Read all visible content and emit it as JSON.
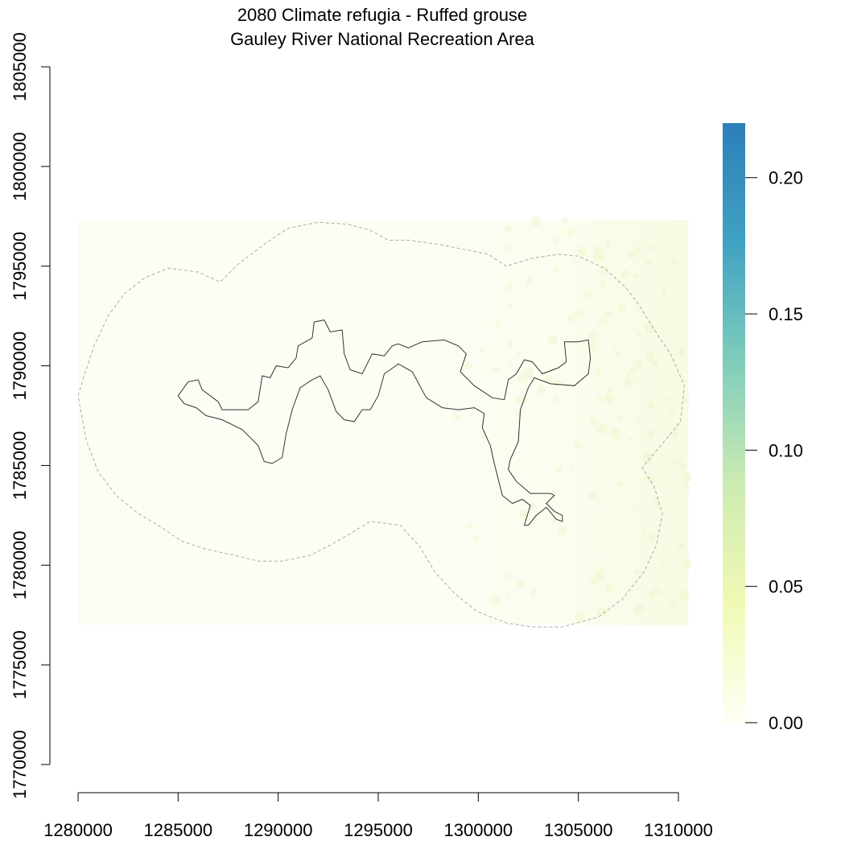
{
  "chart_data": {
    "type": "heatmap",
    "title": "2080 Climate refugia - Ruffed grouse",
    "subtitle": "Gauley River National Recreation Area",
    "xlabel": "",
    "ylabel": "",
    "xlim": [
      1280000,
      1310000
    ],
    "ylim": [
      1770000,
      1805000
    ],
    "x_ticks": [
      1280000,
      1285000,
      1290000,
      1295000,
      1300000,
      1305000,
      1310000
    ],
    "x_tick_labels": [
      "1280000",
      "1285000",
      "1290000",
      "1295000",
      "1300000",
      "1305000",
      "1310000"
    ],
    "y_ticks": [
      1770000,
      1775000,
      1780000,
      1785000,
      1790000,
      1795000,
      1800000,
      1805000
    ],
    "y_tick_labels": [
      "1770000",
      "1775000",
      "1780000",
      "1785000",
      "1790000",
      "1795000",
      "1800000",
      "1805000"
    ],
    "raster_extent": {
      "x": [
        1280000,
        1310500
      ],
      "y": [
        1777000,
        1797300
      ]
    },
    "raster_values": "mostly near 0.00; slightly higher (about 0.01–0.02) toward the east edge",
    "legend": {
      "placement": "right",
      "range": [
        0,
        0.22
      ],
      "ticks": [
        0.0,
        0.05,
        0.1,
        0.15,
        0.2
      ],
      "tick_labels": [
        "0.00",
        "0.05",
        "0.10",
        "0.15",
        "0.20"
      ],
      "colors": [
        "#fffff5",
        "#f1f9b4",
        "#ccebb2",
        "#7fcdbb",
        "#41a2c2",
        "#2c7fb8"
      ]
    },
    "boundary_polygon": [
      [
        1285000,
        1788500
      ],
      [
        1285500,
        1789200
      ],
      [
        1286000,
        1789300
      ],
      [
        1286200,
        1788800
      ],
      [
        1287000,
        1788200
      ],
      [
        1287200,
        1787800
      ],
      [
        1288500,
        1787800
      ],
      [
        1289000,
        1788200
      ],
      [
        1289200,
        1789500
      ],
      [
        1289600,
        1789400
      ],
      [
        1289900,
        1790000
      ],
      [
        1290500,
        1789900
      ],
      [
        1290900,
        1790400
      ],
      [
        1291000,
        1791000
      ],
      [
        1291700,
        1791400
      ],
      [
        1291800,
        1792200
      ],
      [
        1292300,
        1792300
      ],
      [
        1292600,
        1791700
      ],
      [
        1293200,
        1791800
      ],
      [
        1293300,
        1790600
      ],
      [
        1293600,
        1789800
      ],
      [
        1294200,
        1789600
      ],
      [
        1294700,
        1790600
      ],
      [
        1295300,
        1790500
      ],
      [
        1295700,
        1791000
      ],
      [
        1296000,
        1791100
      ],
      [
        1296500,
        1790900
      ],
      [
        1297200,
        1791200
      ],
      [
        1298300,
        1791300
      ],
      [
        1299000,
        1791000
      ],
      [
        1299400,
        1790600
      ],
      [
        1299100,
        1789700
      ],
      [
        1299800,
        1789000
      ],
      [
        1300700,
        1788400
      ],
      [
        1301300,
        1788300
      ],
      [
        1301500,
        1789300
      ],
      [
        1301900,
        1789600
      ],
      [
        1302300,
        1790300
      ],
      [
        1302700,
        1790200
      ],
      [
        1303200,
        1789600
      ],
      [
        1304000,
        1789900
      ],
      [
        1304400,
        1790200
      ],
      [
        1304300,
        1791200
      ],
      [
        1305000,
        1791200
      ],
      [
        1305500,
        1791300
      ],
      [
        1305600,
        1790400
      ],
      [
        1305500,
        1789600
      ],
      [
        1304800,
        1789000
      ],
      [
        1303600,
        1789100
      ],
      [
        1302800,
        1789400
      ],
      [
        1302500,
        1788900
      ],
      [
        1302100,
        1787800
      ],
      [
        1302000,
        1786200
      ],
      [
        1301600,
        1785300
      ],
      [
        1301500,
        1784800
      ],
      [
        1301900,
        1784200
      ],
      [
        1302600,
        1783600
      ],
      [
        1303600,
        1783600
      ],
      [
        1303800,
        1783500
      ],
      [
        1303400,
        1783100
      ],
      [
        1303800,
        1782700
      ],
      [
        1304200,
        1782500
      ],
      [
        1304200,
        1782200
      ],
      [
        1303900,
        1782300
      ],
      [
        1303400,
        1782900
      ],
      [
        1302900,
        1782500
      ],
      [
        1302500,
        1782000
      ],
      [
        1302300,
        1782000
      ],
      [
        1302600,
        1783000
      ],
      [
        1302200,
        1783300
      ],
      [
        1301700,
        1783100
      ],
      [
        1301200,
        1783500
      ],
      [
        1301000,
        1784300
      ],
      [
        1300800,
        1785100
      ],
      [
        1300600,
        1786000
      ],
      [
        1300200,
        1786900
      ],
      [
        1300300,
        1787600
      ],
      [
        1299800,
        1787900
      ],
      [
        1299000,
        1787800
      ],
      [
        1298200,
        1787900
      ],
      [
        1297400,
        1788400
      ],
      [
        1296700,
        1789700
      ],
      [
        1296000,
        1790100
      ],
      [
        1295600,
        1789800
      ],
      [
        1295300,
        1789600
      ],
      [
        1295000,
        1788500
      ],
      [
        1294600,
        1787800
      ],
      [
        1294200,
        1787800
      ],
      [
        1293800,
        1787200
      ],
      [
        1293300,
        1787300
      ],
      [
        1292900,
        1787700
      ],
      [
        1292500,
        1788800
      ],
      [
        1292100,
        1789500
      ],
      [
        1291700,
        1789300
      ],
      [
        1291100,
        1788900
      ],
      [
        1290700,
        1787800
      ],
      [
        1290400,
        1786600
      ],
      [
        1290200,
        1785400
      ],
      [
        1289700,
        1785100
      ],
      [
        1289300,
        1785200
      ],
      [
        1289000,
        1786000
      ],
      [
        1288200,
        1786800
      ],
      [
        1287200,
        1787300
      ],
      [
        1286400,
        1787500
      ],
      [
        1285900,
        1787900
      ],
      [
        1285300,
        1788100
      ]
    ],
    "buffer_polygon": [
      [
        1280000,
        1788500
      ],
      [
        1280300,
        1789500
      ],
      [
        1280800,
        1791000
      ],
      [
        1281500,
        1792500
      ],
      [
        1282300,
        1793600
      ],
      [
        1283300,
        1794400
      ],
      [
        1284500,
        1794900
      ],
      [
        1286000,
        1794700
      ],
      [
        1287100,
        1794200
      ],
      [
        1288000,
        1795100
      ],
      [
        1289300,
        1796100
      ],
      [
        1290500,
        1796900
      ],
      [
        1292000,
        1797200
      ],
      [
        1293500,
        1797100
      ],
      [
        1294600,
        1796800
      ],
      [
        1295500,
        1796300
      ],
      [
        1296500,
        1796300
      ],
      [
        1298000,
        1796100
      ],
      [
        1299500,
        1795800
      ],
      [
        1300500,
        1795600
      ],
      [
        1301400,
        1795000
      ],
      [
        1302700,
        1795400
      ],
      [
        1304000,
        1795600
      ],
      [
        1305000,
        1795500
      ],
      [
        1306300,
        1794900
      ],
      [
        1307400,
        1793900
      ],
      [
        1308000,
        1793100
      ],
      [
        1308800,
        1791800
      ],
      [
        1309600,
        1790600
      ],
      [
        1310300,
        1789000
      ],
      [
        1310100,
        1787200
      ],
      [
        1309200,
        1786100
      ],
      [
        1308200,
        1784900
      ],
      [
        1308800,
        1783900
      ],
      [
        1309200,
        1782600
      ],
      [
        1308900,
        1781000
      ],
      [
        1308300,
        1779700
      ],
      [
        1307200,
        1778300
      ],
      [
        1306000,
        1777400
      ],
      [
        1304200,
        1776900
      ],
      [
        1302700,
        1776900
      ],
      [
        1301400,
        1777100
      ],
      [
        1299900,
        1777700
      ],
      [
        1298800,
        1778600
      ],
      [
        1297800,
        1779700
      ],
      [
        1297100,
        1780900
      ],
      [
        1296100,
        1782000
      ],
      [
        1294600,
        1782200
      ],
      [
        1293800,
        1781700
      ],
      [
        1292600,
        1781000
      ],
      [
        1291600,
        1780500
      ],
      [
        1290200,
        1780200
      ],
      [
        1289000,
        1780200
      ],
      [
        1287800,
        1780500
      ],
      [
        1286400,
        1780800
      ],
      [
        1285200,
        1781200
      ],
      [
        1284000,
        1782000
      ],
      [
        1283000,
        1782600
      ],
      [
        1281900,
        1783500
      ],
      [
        1281000,
        1784700
      ],
      [
        1280400,
        1786300
      ]
    ]
  }
}
